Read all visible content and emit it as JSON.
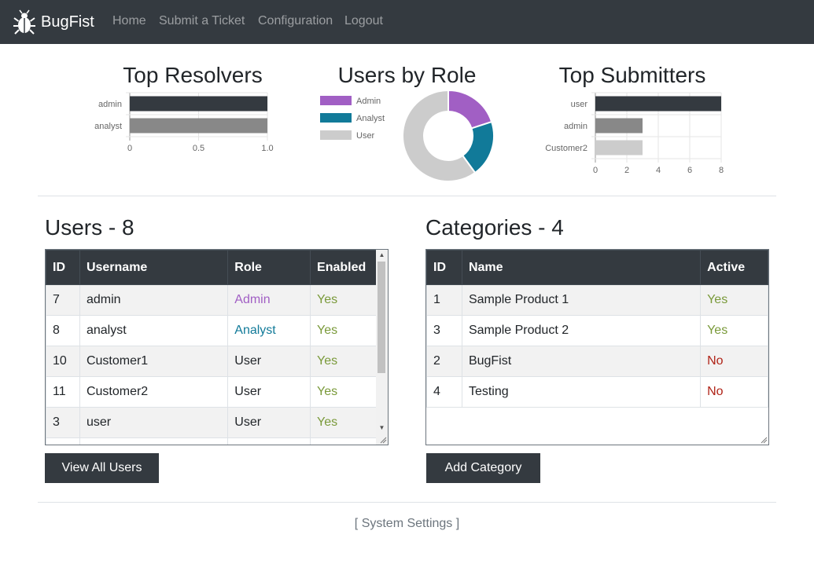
{
  "brand": {
    "name": "BugFist",
    "icon": "bug-icon"
  },
  "nav": [
    {
      "label": "Home",
      "name": "nav-home"
    },
    {
      "label": "Submit a Ticket",
      "name": "nav-submit-ticket"
    },
    {
      "label": "Configuration",
      "name": "nav-configuration"
    },
    {
      "label": "Logout",
      "name": "nav-logout"
    }
  ],
  "chart_data": [
    {
      "type": "bar",
      "orientation": "horizontal",
      "title": "Top Resolvers",
      "categories": [
        "admin",
        "analyst"
      ],
      "values": [
        1,
        1
      ],
      "colors": [
        "#343a40",
        "#888888"
      ],
      "xlim": [
        0,
        1.0
      ],
      "xticks": [
        "0",
        "0.5",
        "1.0"
      ],
      "grid": true
    },
    {
      "type": "pie",
      "variant": "doughnut",
      "title": "Users by Role",
      "categories": [
        "Admin",
        "Analyst",
        "User"
      ],
      "values": [
        1,
        1,
        3
      ],
      "colors": [
        "#a15fc4",
        "#117a99",
        "#cccccc"
      ],
      "legend": "left"
    },
    {
      "type": "bar",
      "orientation": "horizontal",
      "title": "Top Submitters",
      "categories": [
        "user",
        "admin",
        "Customer2"
      ],
      "values": [
        8,
        3,
        3
      ],
      "colors": [
        "#343a40",
        "#888888",
        "#cccccc"
      ],
      "xlim": [
        0,
        8
      ],
      "xticks": [
        "0",
        "2",
        "4",
        "6",
        "8"
      ],
      "grid": true
    }
  ],
  "users": {
    "title": "Users - 8",
    "columns": [
      "ID",
      "Username",
      "Role",
      "Enabled"
    ],
    "rows": [
      {
        "id": "7",
        "username": "admin",
        "role": "Admin",
        "enabled": "Yes"
      },
      {
        "id": "8",
        "username": "analyst",
        "role": "Analyst",
        "enabled": "Yes"
      },
      {
        "id": "10",
        "username": "Customer1",
        "role": "User",
        "enabled": "Yes"
      },
      {
        "id": "11",
        "username": "Customer2",
        "role": "User",
        "enabled": "Yes"
      },
      {
        "id": "3",
        "username": "user",
        "role": "User",
        "enabled": "Yes"
      }
    ],
    "button": "View All Users"
  },
  "categories": {
    "title": "Categories - 4",
    "columns": [
      "ID",
      "Name",
      "Active"
    ],
    "rows": [
      {
        "id": "1",
        "name": "Sample Product 1",
        "active": "Yes"
      },
      {
        "id": "3",
        "name": "Sample Product 2",
        "active": "Yes"
      },
      {
        "id": "2",
        "name": "BugFist",
        "active": "No"
      },
      {
        "id": "4",
        "name": "Testing",
        "active": "No"
      }
    ],
    "button": "Add Category"
  },
  "colors": {
    "admin": "#a15fc4",
    "analyst": "#117a99",
    "user": "#212529",
    "yes": "#7a9a3a",
    "no": "#b02418"
  },
  "footer": {
    "link": "[ System Settings ]"
  }
}
